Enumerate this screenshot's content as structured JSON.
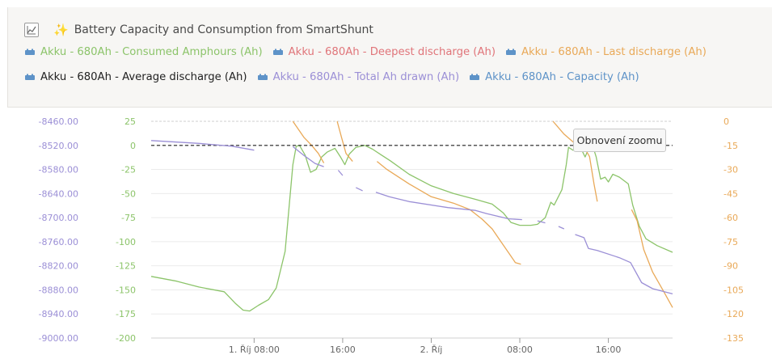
{
  "panel": {
    "title": "Battery Capacity and Consumption from SmartShunt",
    "title_icon": "sparkles-icon",
    "zoom_reset_label": "Obnovení zoomu"
  },
  "legend": [
    {
      "label": "Akku - 680Ah - Consumed Amphours (Ah)",
      "color": "#8cc46a"
    },
    {
      "label": "Akku - 680Ah - Deepest discharge (Ah)",
      "color": "#e0757a"
    },
    {
      "label": "Akku - 680Ah - Last discharge (Ah)",
      "color": "#e9a958"
    },
    {
      "label": "Akku - 680Ah - Average discharge (Ah)",
      "color": "#222222"
    },
    {
      "label": "Akku - 680Ah - Total Ah drawn (Ah)",
      "color": "#9b8fd6"
    },
    {
      "label": "Akku - 680Ah - Capacity (Ah)",
      "color": "#5e93c8"
    }
  ],
  "chart_data": {
    "type": "line",
    "x_ticks": [
      "1. Říj 08:00",
      "16:00",
      "2. Říj",
      "08:00",
      "16:00"
    ],
    "x_tick_hours": [
      8,
      16,
      24,
      32,
      40
    ],
    "x_range_hours": [
      -1.3,
      45.8
    ],
    "axes": {
      "left_outer": {
        "color": "#9b8fd6",
        "ticks": [
          "-8460.00",
          "-8520.00",
          "-8580.00",
          "-8640.00",
          "-8700.00",
          "-8760.00",
          "-8820.00",
          "-8880.00",
          "-8940.00",
          "-9000.00"
        ],
        "range": [
          -9000,
          -8460
        ]
      },
      "left_inner": {
        "color": "#8cc46a",
        "ticks": [
          "25",
          "0",
          "-25",
          "-50",
          "-75",
          "-100",
          "-125",
          "-150",
          "-175",
          "-200"
        ],
        "range": [
          -200,
          25
        ]
      },
      "right": {
        "color": "#e9a958",
        "ticks": [
          "0",
          "-15",
          "-30",
          "-45",
          "-60",
          "-75",
          "-90",
          "-105",
          "-120",
          "-135"
        ],
        "range": [
          -135,
          0
        ]
      }
    },
    "series": [
      {
        "name": "Akku - 680Ah - Consumed Amphours (Ah)",
        "color": "#8cc46a",
        "axis": "left_inner",
        "segments": [
          [
            [
              -1.3,
              -136
            ],
            [
              1,
              -141
            ],
            [
              3,
              -147
            ],
            [
              5.3,
              -152
            ],
            [
              6.3,
              -164
            ],
            [
              7,
              -171
            ],
            [
              7.6,
              -172
            ],
            [
              8.4,
              -166
            ],
            [
              9.3,
              -160
            ],
            [
              10,
              -148
            ],
            [
              10.8,
              -110
            ],
            [
              11.5,
              -20
            ],
            [
              11.8,
              -1
            ],
            [
              12.1,
              0
            ],
            [
              12.6,
              -10
            ],
            [
              13.1,
              -28
            ],
            [
              13.6,
              -25
            ],
            [
              14.1,
              -12
            ],
            [
              14.6,
              -7
            ],
            [
              15.3,
              -3
            ],
            [
              15.8,
              -12
            ],
            [
              16.2,
              -20
            ],
            [
              16.6,
              -9
            ],
            [
              17.2,
              -2
            ],
            [
              18,
              0
            ],
            [
              18.7,
              -4
            ],
            [
              19.5,
              -10
            ],
            [
              20.3,
              -16
            ],
            [
              22,
              -30
            ],
            [
              24,
              -42
            ],
            [
              26,
              -50
            ],
            [
              28,
              -56
            ],
            [
              29.5,
              -61
            ],
            [
              30.5,
              -70
            ],
            [
              31.2,
              -80
            ],
            [
              32,
              -83
            ],
            [
              33,
              -83
            ],
            [
              33.6,
              -82
            ],
            [
              34.3,
              -75
            ],
            [
              34.8,
              -59
            ],
            [
              35.1,
              -62
            ],
            [
              35.8,
              -46
            ],
            [
              36.2,
              -20
            ],
            [
              36.4,
              -2
            ],
            [
              36.8,
              -5
            ],
            [
              37.3,
              -2
            ],
            [
              37.6,
              -5
            ],
            [
              37.9,
              -12
            ],
            [
              38.2,
              -4
            ],
            [
              38.6,
              -1
            ],
            [
              38.9,
              -12
            ],
            [
              39.3,
              -35
            ],
            [
              39.7,
              -33
            ],
            [
              40,
              -38
            ],
            [
              40.4,
              -30
            ],
            [
              41,
              -33
            ],
            [
              41.8,
              -40
            ],
            [
              42.2,
              -62
            ],
            [
              42.8,
              -84
            ],
            [
              43.4,
              -97
            ],
            [
              44.4,
              -104
            ],
            [
              45.8,
              -111
            ]
          ]
        ]
      },
      {
        "name": "Akku - 680Ah - Last discharge (Ah)",
        "color": "#e9a958",
        "axis": "right",
        "segments": [
          [
            [
              11.5,
              0
            ],
            [
              12.5,
              -10
            ],
            [
              13.2,
              -15
            ],
            [
              13.8,
              -20
            ],
            [
              14.3,
              -26
            ]
          ],
          [
            [
              15.5,
              0
            ],
            [
              15.9,
              -10
            ],
            [
              16.3,
              -20
            ],
            [
              16.9,
              -25
            ]
          ],
          [
            [
              19.1,
              -25
            ],
            [
              20,
              -30
            ],
            [
              22,
              -39
            ],
            [
              24,
              -47
            ],
            [
              26,
              -51
            ],
            [
              27.5,
              -55
            ],
            [
              28.6,
              -61
            ],
            [
              29.5,
              -67
            ],
            [
              30.3,
              -75
            ],
            [
              31,
              -82
            ],
            [
              31.6,
              -88
            ],
            [
              32.1,
              -89
            ]
          ],
          [
            [
              35,
              0
            ],
            [
              36,
              -8
            ],
            [
              37,
              -14
            ],
            [
              37.8,
              -16
            ],
            [
              38.3,
              -22
            ],
            [
              38.7,
              -39
            ],
            [
              39,
              -50
            ]
          ],
          [
            [
              42.1,
              -55
            ],
            [
              42.6,
              -62
            ],
            [
              43.2,
              -80
            ],
            [
              44,
              -94
            ],
            [
              45,
              -106
            ],
            [
              45.8,
              -116
            ]
          ]
        ]
      },
      {
        "name": "Akku - 680Ah - Average discharge (Ah)",
        "color": "#222222",
        "axis": "left_inner",
        "dashed": true,
        "segments": [
          [
            [
              -1.3,
              0
            ],
            [
              45.8,
              0
            ]
          ]
        ]
      },
      {
        "name": "Akku - 680Ah - Total Ah drawn (Ah)",
        "color": "#9b8fd6",
        "axis": "left_outer",
        "segments": [
          [
            [
              -1.3,
              -8508
            ],
            [
              3,
              -8515
            ],
            [
              6,
              -8522
            ],
            [
              7.6,
              -8530
            ],
            [
              8,
              -8532
            ]
          ],
          [
            [
              11.5,
              -8523
            ],
            [
              12.5,
              -8545
            ],
            [
              13.5,
              -8565
            ],
            [
              14.3,
              -8573
            ]
          ],
          [
            [
              15.6,
              -8582
            ],
            [
              16,
              -8595
            ]
          ],
          [
            [
              17.2,
              -8625
            ],
            [
              17.8,
              -8633
            ]
          ],
          [
            [
              19,
              -8637
            ],
            [
              20.2,
              -8648
            ],
            [
              22,
              -8660
            ],
            [
              25.5,
              -8675
            ],
            [
              28,
              -8682
            ],
            [
              29,
              -8690
            ],
            [
              31,
              -8703
            ],
            [
              32.2,
              -8705
            ]
          ],
          [
            [
              33.6,
              -8708
            ],
            [
              34.3,
              -8713
            ]
          ],
          [
            [
              35.5,
              -8722
            ],
            [
              36,
              -8728
            ]
          ],
          [
            [
              37,
              -8742
            ],
            [
              37.8,
              -8750
            ],
            [
              38.2,
              -8777
            ],
            [
              39,
              -8782
            ],
            [
              41,
              -8800
            ],
            [
              42,
              -8812
            ],
            [
              43,
              -8862
            ],
            [
              44,
              -8877
            ],
            [
              45.8,
              -8890
            ]
          ]
        ]
      }
    ],
    "gridlines": true
  }
}
